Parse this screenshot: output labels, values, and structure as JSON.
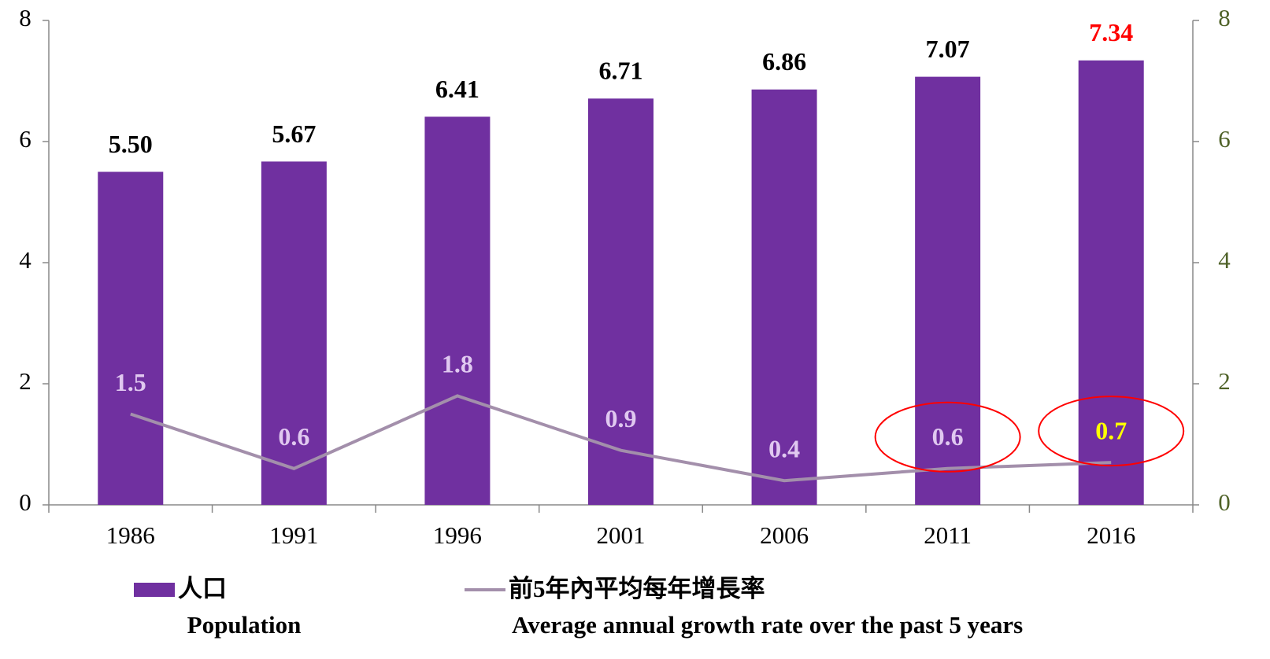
{
  "chart_data": {
    "type": "bar",
    "categories": [
      "1986",
      "1991",
      "1996",
      "2001",
      "2006",
      "2011",
      "2016"
    ],
    "series": [
      {
        "name": "人口",
        "name_en": "Population",
        "color": "#7030a0",
        "type": "bar",
        "values": [
          5.5,
          5.67,
          6.41,
          6.71,
          6.86,
          7.07,
          7.34
        ],
        "value_labels": [
          "5.50",
          "5.67",
          "6.41",
          "6.71",
          "6.86",
          "7.07",
          "7.34"
        ],
        "label_colors": [
          "#000000",
          "#000000",
          "#000000",
          "#000000",
          "#000000",
          "#000000",
          "#ff0000"
        ]
      },
      {
        "name": "前5年內平均每年增長率",
        "name_en": "Average annual growth rate over the past 5 years",
        "color": "#a38fab",
        "type": "line",
        "axis": "y2",
        "values": [
          1.5,
          0.6,
          1.8,
          0.9,
          0.4,
          0.6,
          0.7
        ],
        "label_colors": [
          "#e0c8f0",
          "#e0c8f0",
          "#e0c8f0",
          "#e0c8f0",
          "#e0c8f0",
          "#e0c8f0",
          "#ffff00"
        ]
      }
    ],
    "ylim": [
      0,
      8
    ],
    "yticks": [
      0,
      2,
      4,
      6,
      8
    ],
    "y2lim": [
      0,
      8
    ],
    "y2ticks": [
      0,
      2,
      4,
      6,
      8
    ],
    "y2_color": "#4f6228",
    "highlight_indices": [
      5,
      6
    ],
    "highlight_color": "#ff0000",
    "grid": false
  }
}
